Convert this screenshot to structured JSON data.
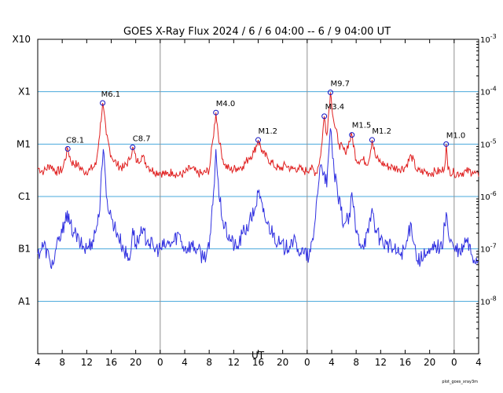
{
  "chart_data": {
    "type": "line",
    "title": "GOES X-Ray Flux   2024 /  6 /  6   04:00 --  6 /  9   04:00   UT",
    "xlabel": "UT",
    "footnote": "plot_goes_xray3m",
    "x_range_hours": [
      4,
      76
    ],
    "y_scale": "log",
    "y_range_wm2": [
      1e-09,
      0.001
    ],
    "grid": true,
    "class_labels": [
      {
        "label": "X10",
        "value": 0.001
      },
      {
        "label": "X1",
        "value": 0.0001
      },
      {
        "label": "M1",
        "value": 1e-05
      },
      {
        "label": "C1",
        "value": 1e-06
      },
      {
        "label": "B1",
        "value": 1e-07
      },
      {
        "label": "A1",
        "value": 1e-08
      }
    ],
    "right_ticks": [
      {
        "base": "10",
        "exp": "-3",
        "value": 0.001
      },
      {
        "base": "10",
        "exp": "-4",
        "value": 0.0001
      },
      {
        "base": "10",
        "exp": "-5",
        "value": 1e-05
      },
      {
        "base": "10",
        "exp": "-6",
        "value": 1e-06
      },
      {
        "base": "10",
        "exp": "-7",
        "value": 1e-07
      },
      {
        "base": "10",
        "exp": "-8",
        "value": 1e-08
      }
    ],
    "x_ticks": [
      {
        "label": "4",
        "h": 4
      },
      {
        "label": "8",
        "h": 8
      },
      {
        "label": "12",
        "h": 12
      },
      {
        "label": "16",
        "h": 16
      },
      {
        "label": "20",
        "h": 20
      },
      {
        "label": "0",
        "h": 24
      },
      {
        "label": "4",
        "h": 28
      },
      {
        "label": "8",
        "h": 32
      },
      {
        "label": "12",
        "h": 36
      },
      {
        "label": "16",
        "h": 40
      },
      {
        "label": "20",
        "h": 44
      },
      {
        "label": "0",
        "h": 48
      },
      {
        "label": "4",
        "h": 52
      },
      {
        "label": "8",
        "h": 56
      },
      {
        "label": "12",
        "h": 60
      },
      {
        "label": "16",
        "h": 64
      },
      {
        "label": "20",
        "h": 68
      },
      {
        "label": "0",
        "h": 72
      },
      {
        "label": "4",
        "h": 76
      }
    ],
    "day_boundaries_h": [
      24,
      48,
      72
    ],
    "flares": [
      {
        "label": "C8.1",
        "h": 8.9,
        "flux": 8.1e-06
      },
      {
        "label": "M6.1",
        "h": 14.6,
        "flux": 6.1e-05
      },
      {
        "label": "C8.7",
        "h": 19.5,
        "flux": 8.7e-06
      },
      {
        "label": "M4.0",
        "h": 33.1,
        "flux": 4e-05
      },
      {
        "label": "M1.2",
        "h": 40.0,
        "flux": 1.2e-05
      },
      {
        "label": "M3.4",
        "h": 50.8,
        "flux": 3.4e-05
      },
      {
        "label": "M9.7",
        "h": 51.8,
        "flux": 9.7e-05
      },
      {
        "label": "M1.5",
        "h": 55.3,
        "flux": 1.5e-05
      },
      {
        "label": "M1.2",
        "h": 58.6,
        "flux": 1.2e-05
      },
      {
        "label": "M1.0",
        "h": 70.7,
        "flux": 1e-05
      }
    ],
    "series": [
      {
        "color": "#e02020",
        "band": "long",
        "points": [
          [
            4,
            3.5e-06
          ],
          [
            5,
            3e-06
          ],
          [
            6,
            4e-06
          ],
          [
            7,
            3e-06
          ],
          [
            8,
            3.2e-06
          ],
          [
            8.9,
            8.1e-06
          ],
          [
            9.5,
            4.5e-06
          ],
          [
            10.5,
            4e-06
          ],
          [
            11.5,
            3e-06
          ],
          [
            12.5,
            3.2e-06
          ],
          [
            13.5,
            4e-06
          ],
          [
            14.0,
            1.2e-05
          ],
          [
            14.6,
            6.1e-05
          ],
          [
            15.2,
            1.5e-05
          ],
          [
            16.0,
            6e-06
          ],
          [
            17.0,
            4e-06
          ],
          [
            18.0,
            3.5e-06
          ],
          [
            19.0,
            5e-06
          ],
          [
            19.5,
            8.7e-06
          ],
          [
            20.2,
            4.5e-06
          ],
          [
            21.0,
            6e-06
          ],
          [
            22.0,
            3.8e-06
          ],
          [
            23.0,
            3e-06
          ],
          [
            24.0,
            2.9e-06
          ],
          [
            25.0,
            2.6e-06
          ],
          [
            26.0,
            3e-06
          ],
          [
            27.0,
            2.5e-06
          ],
          [
            28.0,
            2.8e-06
          ],
          [
            29.0,
            3.5e-06
          ],
          [
            30.0,
            2.8e-06
          ],
          [
            31.0,
            2.7e-06
          ],
          [
            32.0,
            3.2e-06
          ],
          [
            32.6,
            1.2e-05
          ],
          [
            33.1,
            4e-05
          ],
          [
            33.7,
            1e-05
          ],
          [
            34.5,
            4e-06
          ],
          [
            35.5,
            3.2e-06
          ],
          [
            36.5,
            3.5e-06
          ],
          [
            37.5,
            3.8e-06
          ],
          [
            38.5,
            5.5e-06
          ],
          [
            39.3,
            7e-06
          ],
          [
            40.0,
            1.2e-05
          ],
          [
            40.8,
            6.5e-06
          ],
          [
            41.5,
            5.5e-06
          ],
          [
            42.5,
            4e-06
          ],
          [
            43.5,
            3.3e-06
          ],
          [
            44.5,
            4e-06
          ],
          [
            45.5,
            3.3e-06
          ],
          [
            46.5,
            3.5e-06
          ],
          [
            47.5,
            3e-06
          ],
          [
            48.5,
            3.5e-06
          ],
          [
            49.5,
            2.8e-06
          ],
          [
            50.2,
            6e-06
          ],
          [
            50.8,
            3.4e-05
          ],
          [
            51.2,
            1.5e-05
          ],
          [
            51.8,
            9.7e-05
          ],
          [
            52.4,
            2.5e-05
          ],
          [
            53.2,
            1e-05
          ],
          [
            54.2,
            7e-06
          ],
          [
            55.3,
            1.5e-05
          ],
          [
            56.0,
            5e-06
          ],
          [
            57.0,
            5e-06
          ],
          [
            58.0,
            4.5e-06
          ],
          [
            58.6,
            1.2e-05
          ],
          [
            59.2,
            5.5e-06
          ],
          [
            60.0,
            4.5e-06
          ],
          [
            61.0,
            3.8e-06
          ],
          [
            62.0,
            3.6e-06
          ],
          [
            63.0,
            3.4e-06
          ],
          [
            64.0,
            3.6e-06
          ],
          [
            65.0,
            6e-06
          ],
          [
            66.0,
            3e-06
          ],
          [
            67.0,
            3e-06
          ],
          [
            68.0,
            2.8e-06
          ],
          [
            69.0,
            3e-06
          ],
          [
            70.0,
            3e-06
          ],
          [
            70.5,
            4e-06
          ],
          [
            70.7,
            1e-05
          ],
          [
            71.0,
            3.2e-06
          ],
          [
            72.0,
            2.8e-06
          ],
          [
            73.0,
            2.8e-06
          ],
          [
            74.0,
            3e-06
          ],
          [
            75.0,
            3e-06
          ],
          [
            76.0,
            2.4e-06
          ]
        ]
      },
      {
        "color": "#3030e0",
        "band": "short",
        "points": [
          [
            4,
            8e-08
          ],
          [
            5,
            1.2e-07
          ],
          [
            6,
            6e-08
          ],
          [
            6.5,
            5e-08
          ],
          [
            7,
            1e-07
          ],
          [
            8,
            2e-07
          ],
          [
            8.6,
            5e-07
          ],
          [
            9.2,
            3e-07
          ],
          [
            10.0,
            2e-07
          ],
          [
            11.0,
            1.2e-07
          ],
          [
            12.0,
            1e-07
          ],
          [
            13.0,
            1.5e-07
          ],
          [
            14.0,
            4e-07
          ],
          [
            14.4,
            3e-06
          ],
          [
            14.7,
            8e-06
          ],
          [
            15.2,
            1e-06
          ],
          [
            16.0,
            4e-07
          ],
          [
            17.0,
            2e-07
          ],
          [
            18.0,
            1e-07
          ],
          [
            19.0,
            6e-08
          ],
          [
            19.5,
            2.5e-07
          ],
          [
            20.0,
            1.2e-07
          ],
          [
            21.0,
            2e-07
          ],
          [
            22.0,
            1.5e-07
          ],
          [
            23.0,
            1e-07
          ],
          [
            24.0,
            1e-07
          ],
          [
            25.0,
            1.2e-07
          ],
          [
            26.0,
            1.3e-07
          ],
          [
            27.0,
            2e-07
          ],
          [
            28.0,
            1e-07
          ],
          [
            29.0,
            1.2e-07
          ],
          [
            30.0,
            1e-07
          ],
          [
            31.0,
            7e-08
          ],
          [
            32.0,
            1e-07
          ],
          [
            32.6,
            7e-07
          ],
          [
            33.1,
            8e-06
          ],
          [
            33.6,
            1e-06
          ],
          [
            34.5,
            2.5e-07
          ],
          [
            35.5,
            1.5e-07
          ],
          [
            36.5,
            1e-07
          ],
          [
            37.5,
            2e-07
          ],
          [
            38.5,
            3e-07
          ],
          [
            39.5,
            6e-07
          ],
          [
            40.0,
            1.2e-06
          ],
          [
            40.8,
            5e-07
          ],
          [
            41.5,
            3e-07
          ],
          [
            42.5,
            2e-07
          ],
          [
            43.5,
            1.2e-07
          ],
          [
            44.5,
            1e-07
          ],
          [
            45.5,
            1.5e-07
          ],
          [
            46.5,
            1e-07
          ],
          [
            47.5,
            8e-08
          ],
          [
            48.3,
            7e-08
          ],
          [
            49.0,
            1.5e-07
          ],
          [
            49.6,
            1e-06
          ],
          [
            50.2,
            4e-06
          ],
          [
            50.8,
            3e-06
          ],
          [
            51.2,
            1.5e-06
          ],
          [
            51.8,
            2e-05
          ],
          [
            52.4,
            3e-06
          ],
          [
            53.0,
            1e-06
          ],
          [
            54.0,
            3e-07
          ],
          [
            55.0,
            4e-07
          ],
          [
            55.3,
            1.2e-06
          ],
          [
            56.0,
            2e-07
          ],
          [
            57.0,
            1.2e-07
          ],
          [
            58.0,
            2e-07
          ],
          [
            58.6,
            6e-07
          ],
          [
            59.3,
            2e-07
          ],
          [
            60.0,
            1.5e-07
          ],
          [
            61.0,
            1.2e-07
          ],
          [
            62.0,
            1e-07
          ],
          [
            63.0,
            8e-08
          ],
          [
            64.0,
            1e-07
          ],
          [
            65.0,
            3e-07
          ],
          [
            66.0,
            6e-08
          ],
          [
            67.0,
            7e-08
          ],
          [
            68.0,
            8e-08
          ],
          [
            69.0,
            1.2e-07
          ],
          [
            70.0,
            1e-07
          ],
          [
            70.7,
            5e-07
          ],
          [
            71.2,
            1.5e-07
          ],
          [
            72.0,
            1e-07
          ],
          [
            73.0,
            8e-08
          ],
          [
            74.0,
            1.5e-07
          ],
          [
            75.0,
            7e-08
          ],
          [
            76.0,
            6e-08
          ]
        ]
      }
    ]
  }
}
